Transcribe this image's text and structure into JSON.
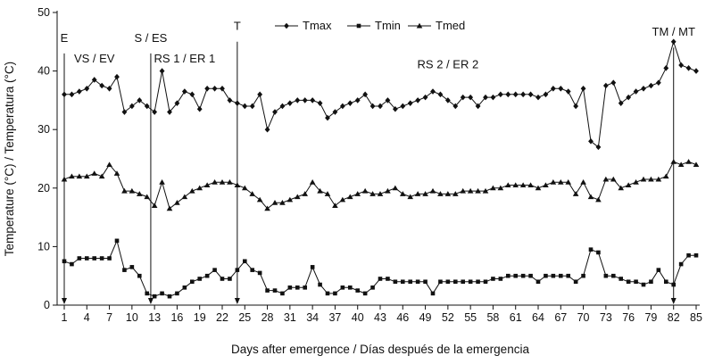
{
  "figure": {
    "background": "#ffffff",
    "ink_color": "#111111"
  },
  "chart_data": {
    "type": "line",
    "title": "",
    "xlabel": "Days after emergence / Días después de la emergencia",
    "ylabel": "Temperature (°C) / Temperatura (°C)",
    "xlim": [
      1,
      85
    ],
    "ylim": [
      0,
      50
    ],
    "grid": false,
    "legend_position": "top-center",
    "y_ticks": [
      0,
      10,
      20,
      30,
      40,
      50
    ],
    "x_ticks": [
      1,
      4,
      7,
      10,
      13,
      16,
      19,
      22,
      25,
      28,
      31,
      34,
      37,
      40,
      43,
      46,
      49,
      52,
      55,
      58,
      61,
      64,
      67,
      70,
      73,
      76,
      79,
      82,
      85
    ],
    "days": [
      1,
      2,
      3,
      4,
      5,
      6,
      7,
      8,
      9,
      10,
      11,
      12,
      13,
      14,
      15,
      16,
      17,
      18,
      19,
      20,
      21,
      22,
      23,
      24,
      25,
      26,
      27,
      28,
      29,
      30,
      31,
      32,
      33,
      34,
      35,
      36,
      37,
      38,
      39,
      40,
      41,
      42,
      43,
      44,
      45,
      46,
      47,
      48,
      49,
      50,
      51,
      52,
      53,
      54,
      55,
      56,
      57,
      58,
      59,
      60,
      61,
      62,
      63,
      64,
      65,
      66,
      67,
      68,
      69,
      70,
      71,
      72,
      73,
      74,
      75,
      76,
      77,
      78,
      79,
      80,
      81,
      82,
      83,
      84,
      85
    ],
    "series": [
      {
        "name": "Tmax",
        "marker": "diamond",
        "values": [
          36,
          36,
          36.5,
          37,
          38.5,
          37.5,
          37,
          39,
          33,
          34,
          35,
          34,
          33,
          40,
          33,
          34.5,
          36.5,
          36,
          33.5,
          37,
          37,
          37,
          35,
          34.5,
          34,
          34,
          36,
          30,
          33,
          34,
          34.5,
          35,
          35,
          35,
          34.5,
          32,
          33,
          34,
          34.5,
          35,
          36,
          34,
          34,
          35,
          33.5,
          34,
          34.5,
          35,
          35.5,
          36.5,
          36,
          35,
          34,
          35.5,
          35.5,
          34,
          35.5,
          35.5,
          36,
          36,
          36,
          36,
          36,
          35.5,
          36,
          37,
          37,
          36.5,
          34,
          37,
          28,
          27,
          37.5,
          38,
          34.5,
          35.5,
          36.5,
          37,
          37.5,
          38,
          40.5,
          45,
          41,
          40.5,
          40
        ]
      },
      {
        "name": "Tmin",
        "marker": "square",
        "values": [
          7.5,
          7,
          8,
          8,
          8,
          8,
          8,
          11,
          6,
          6.5,
          5,
          2,
          1.5,
          2,
          1.5,
          2,
          3,
          4,
          4.5,
          5,
          6,
          4.5,
          4.5,
          6,
          7.5,
          6,
          5.5,
          2.5,
          2.5,
          2,
          3,
          3,
          3,
          6.5,
          3.5,
          2,
          2,
          3,
          3,
          2.5,
          2,
          3,
          4.5,
          4.5,
          4,
          4,
          4,
          4,
          4,
          2,
          4,
          4,
          4,
          4,
          4,
          4,
          4,
          4.5,
          4.5,
          5,
          5,
          5,
          5,
          4,
          5,
          5,
          5,
          5,
          4,
          5,
          9.5,
          9,
          5,
          5,
          4.5,
          4,
          4,
          3.5,
          4,
          6,
          4,
          3.5,
          7,
          8.5,
          8.5
        ]
      },
      {
        "name": "Tmed",
        "marker": "triangle",
        "values": [
          21.5,
          22,
          22,
          22,
          22.5,
          22,
          24,
          22.5,
          19.5,
          19.5,
          19,
          18.5,
          17,
          21,
          16.5,
          17.5,
          18.5,
          19.5,
          20,
          20.5,
          21,
          21,
          21,
          20.5,
          20,
          19,
          18,
          16.5,
          17.5,
          17.5,
          18,
          18.5,
          19,
          21,
          19.5,
          19,
          17,
          18,
          18.5,
          19,
          19.5,
          19,
          19,
          19.5,
          20,
          19,
          18.5,
          19,
          19,
          19.5,
          19,
          19,
          19,
          19.5,
          19.5,
          19.5,
          19.5,
          20,
          20,
          20.5,
          20.5,
          20.5,
          20.5,
          20,
          20.5,
          21,
          21,
          21,
          19,
          21,
          18.5,
          18,
          21.5,
          21.5,
          20,
          20.5,
          21,
          21.5,
          21.5,
          21.5,
          22,
          24.5,
          24,
          24.5,
          24
        ]
      }
    ],
    "annotations": {
      "events": [
        {
          "label": "E",
          "day": 1,
          "label_y": 45,
          "line_top": 43
        },
        {
          "label": "S / ES",
          "day": 12.5,
          "label_y": 45,
          "line_top": 43
        },
        {
          "label": "T",
          "day": 24,
          "label_y": 47,
          "line_top": 45
        },
        {
          "label": "TM / MT",
          "day": 82,
          "label_y": 46,
          "line_top": 44
        }
      ],
      "phases": [
        {
          "label": "VS / EV",
          "day": 5,
          "y": 41.5
        },
        {
          "label": "RS 1 / ER 1",
          "day": 17,
          "y": 41.5
        },
        {
          "label": "RS 2 / ER 2",
          "day": 52,
          "y": 40.5
        }
      ]
    }
  }
}
